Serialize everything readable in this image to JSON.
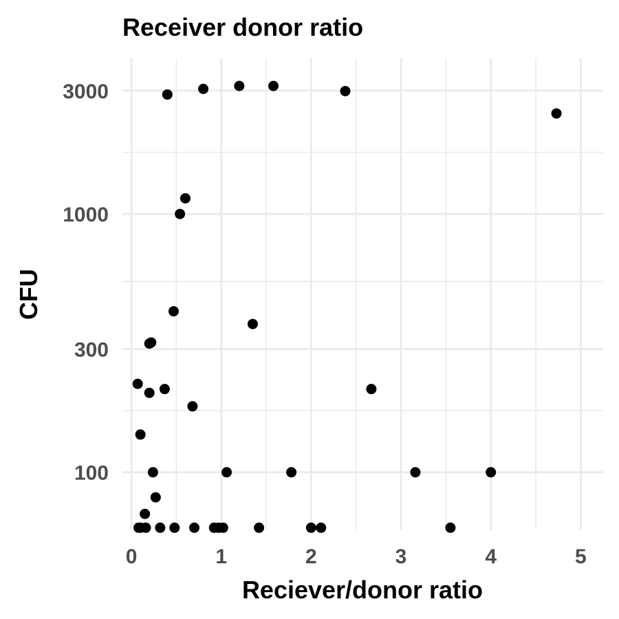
{
  "chart_data": {
    "type": "scatter",
    "title": "Receiver donor ratio",
    "xlabel": "Reciever/donor ratio",
    "ylabel": "CFU",
    "x_scale": "linear",
    "y_scale": "log10",
    "xlim": [
      -0.1,
      5.25
    ],
    "ylim": [
      60,
      4000
    ],
    "x_ticks": [
      0,
      1,
      2,
      3,
      4,
      5
    ],
    "x_tick_labels": [
      "0",
      "1",
      "2",
      "3",
      "4",
      "5"
    ],
    "y_ticks": [
      100,
      300,
      1000,
      3000
    ],
    "y_tick_labels": [
      "100",
      "300",
      "1000",
      "3000"
    ],
    "grid": true,
    "legend": "none",
    "point_color": "#000000",
    "points": [
      {
        "x": 0.4,
        "y": 2900
      },
      {
        "x": 0.8,
        "y": 3050
      },
      {
        "x": 1.2,
        "y": 3130
      },
      {
        "x": 1.58,
        "y": 3130
      },
      {
        "x": 2.38,
        "y": 2990
      },
      {
        "x": 4.73,
        "y": 2450
      },
      {
        "x": 0.6,
        "y": 1150
      },
      {
        "x": 0.54,
        "y": 1000
      },
      {
        "x": 0.47,
        "y": 420
      },
      {
        "x": 1.35,
        "y": 375
      },
      {
        "x": 0.2,
        "y": 315
      },
      {
        "x": 0.22,
        "y": 318
      },
      {
        "x": 0.07,
        "y": 220
      },
      {
        "x": 0.2,
        "y": 203
      },
      {
        "x": 0.37,
        "y": 210
      },
      {
        "x": 2.67,
        "y": 210
      },
      {
        "x": 0.68,
        "y": 180
      },
      {
        "x": 0.1,
        "y": 140
      },
      {
        "x": 0.24,
        "y": 100
      },
      {
        "x": 1.06,
        "y": 100
      },
      {
        "x": 1.78,
        "y": 100
      },
      {
        "x": 3.16,
        "y": 100
      },
      {
        "x": 4.0,
        "y": 100
      },
      {
        "x": 0.27,
        "y": 80
      },
      {
        "x": 0.15,
        "y": 69
      },
      {
        "x": 0.08,
        "y": 61
      },
      {
        "x": 0.1,
        "y": 61
      },
      {
        "x": 0.16,
        "y": 61
      },
      {
        "x": 0.32,
        "y": 61
      },
      {
        "x": 0.48,
        "y": 61
      },
      {
        "x": 0.7,
        "y": 61
      },
      {
        "x": 0.92,
        "y": 61
      },
      {
        "x": 0.97,
        "y": 61
      },
      {
        "x": 1.02,
        "y": 61
      },
      {
        "x": 1.42,
        "y": 61
      },
      {
        "x": 2.0,
        "y": 61
      },
      {
        "x": 2.11,
        "y": 61
      },
      {
        "x": 3.55,
        "y": 61
      }
    ]
  }
}
